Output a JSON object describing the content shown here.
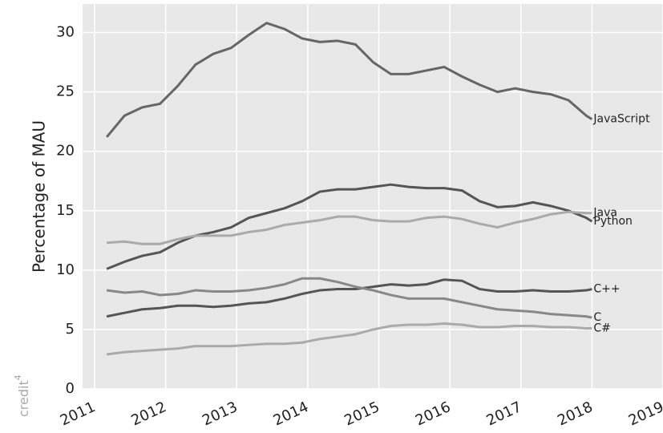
{
  "chart_data": {
    "type": "line",
    "y_label": "Percentage of MAU",
    "credit_note": {
      "text": "credit",
      "superscript": "4"
    },
    "xlim": [
      2010.83,
      2019.0
    ],
    "xticks": [
      2011,
      2012,
      2013,
      2014,
      2015,
      2016,
      2017,
      2018,
      2019
    ],
    "ylim": [
      0,
      32.4
    ],
    "yticks": [
      0,
      5,
      10,
      15,
      20,
      25,
      30
    ],
    "grid": true,
    "x": [
      2011.17,
      2011.42,
      2011.67,
      2011.92,
      2012.17,
      2012.42,
      2012.67,
      2012.92,
      2013.17,
      2013.42,
      2013.67,
      2013.92,
      2014.17,
      2014.42,
      2014.67,
      2014.92,
      2015.17,
      2015.42,
      2015.67,
      2015.92,
      2016.17,
      2016.42,
      2016.67,
      2016.92,
      2017.17,
      2017.42,
      2017.67,
      2017.92,
      2018.0
    ],
    "series": [
      {
        "name": "JavaScript",
        "color": "#666666",
        "values": [
          21.2,
          23.0,
          23.7,
          24.0,
          25.5,
          27.3,
          28.2,
          28.7,
          29.8,
          30.8,
          30.3,
          29.5,
          29.2,
          29.3,
          29.0,
          27.5,
          26.5,
          26.5,
          26.8,
          27.1,
          26.3,
          25.6,
          25.0,
          25.3,
          25.0,
          24.8,
          24.3,
          23.0,
          22.7
        ]
      },
      {
        "name": "Python",
        "color": "#555555",
        "values": [
          10.1,
          10.7,
          11.2,
          11.5,
          12.3,
          12.9,
          13.2,
          13.6,
          14.4,
          14.8,
          15.2,
          15.8,
          16.6,
          16.8,
          16.8,
          17.0,
          17.2,
          17.0,
          16.9,
          16.9,
          16.7,
          15.8,
          15.3,
          15.4,
          15.7,
          15.4,
          15.0,
          14.4,
          14.1
        ]
      },
      {
        "name": "Java",
        "color": "#aaaaaa",
        "values": [
          12.3,
          12.4,
          12.2,
          12.2,
          12.6,
          12.9,
          12.9,
          12.9,
          13.2,
          13.4,
          13.8,
          14.0,
          14.2,
          14.5,
          14.5,
          14.2,
          14.1,
          14.1,
          14.4,
          14.5,
          14.3,
          13.9,
          13.6,
          14.0,
          14.3,
          14.7,
          14.9,
          14.8,
          14.8
        ]
      },
      {
        "name": "C++",
        "color": "#555555",
        "values": [
          6.1,
          6.4,
          6.7,
          6.8,
          7.0,
          7.0,
          6.9,
          7.0,
          7.2,
          7.3,
          7.6,
          8.0,
          8.3,
          8.4,
          8.4,
          8.6,
          8.8,
          8.7,
          8.8,
          9.2,
          9.1,
          8.4,
          8.2,
          8.2,
          8.3,
          8.2,
          8.2,
          8.3,
          8.4
        ]
      },
      {
        "name": "C",
        "color": "#888888",
        "values": [
          8.3,
          8.1,
          8.2,
          7.9,
          8.0,
          8.3,
          8.2,
          8.2,
          8.3,
          8.5,
          8.8,
          9.3,
          9.3,
          9.0,
          8.6,
          8.3,
          7.9,
          7.6,
          7.6,
          7.6,
          7.3,
          7.0,
          6.7,
          6.6,
          6.5,
          6.3,
          6.2,
          6.1,
          6.0
        ]
      },
      {
        "name": "C#",
        "color": "#aaaaaa",
        "values": [
          2.9,
          3.1,
          3.2,
          3.3,
          3.4,
          3.6,
          3.6,
          3.6,
          3.7,
          3.8,
          3.8,
          3.9,
          4.2,
          4.4,
          4.6,
          5.0,
          5.3,
          5.4,
          5.4,
          5.5,
          5.4,
          5.2,
          5.2,
          5.3,
          5.3,
          5.2,
          5.2,
          5.1,
          5.1
        ]
      }
    ]
  }
}
